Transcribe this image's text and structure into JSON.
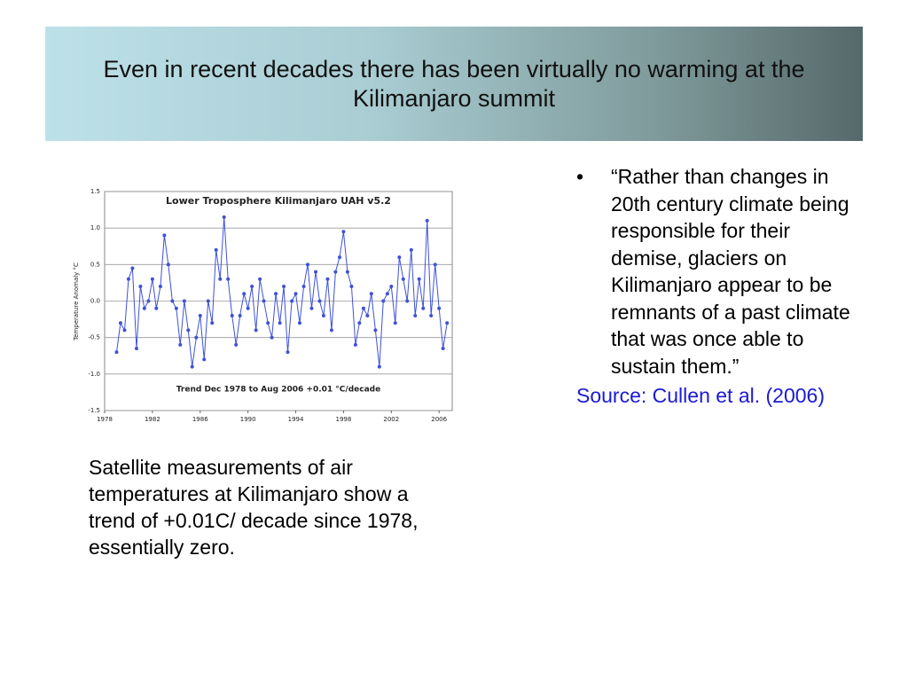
{
  "header": {
    "title": "Even in recent decades there has been virtually no warming at the Kilimanjaro summit"
  },
  "chart_data": {
    "type": "line",
    "title": "Lower Troposphere Kilimanjaro UAH v5.2",
    "y_label": "Temperature Anomaly °C",
    "annotation": "Trend Dec 1978 to Aug 2006  +0.01 °C/decade",
    "x": [
      1979.0,
      1979.33,
      1979.67,
      1980.0,
      1980.33,
      1980.67,
      1981.0,
      1981.33,
      1981.67,
      1982.0,
      1982.33,
      1982.67,
      1983.0,
      1983.33,
      1983.67,
      1984.0,
      1984.33,
      1984.67,
      1985.0,
      1985.33,
      1985.67,
      1986.0,
      1986.33,
      1986.67,
      1987.0,
      1987.33,
      1987.67,
      1988.0,
      1988.33,
      1988.67,
      1989.0,
      1989.33,
      1989.67,
      1990.0,
      1990.33,
      1990.67,
      1991.0,
      1991.33,
      1991.67,
      1992.0,
      1992.33,
      1992.67,
      1993.0,
      1993.33,
      1993.67,
      1994.0,
      1994.33,
      1994.67,
      1995.0,
      1995.33,
      1995.67,
      1996.0,
      1996.33,
      1996.67,
      1997.0,
      1997.33,
      1997.67,
      1998.0,
      1998.33,
      1998.67,
      1999.0,
      1999.33,
      1999.67,
      2000.0,
      2000.33,
      2000.67,
      2001.0,
      2001.33,
      2001.67,
      2002.0,
      2002.33,
      2002.67,
      2003.0,
      2003.33,
      2003.67,
      2004.0,
      2004.33,
      2004.67,
      2005.0,
      2005.33,
      2005.67,
      2006.0,
      2006.33,
      2006.67
    ],
    "series": [
      {
        "name": "Temperature Anomaly",
        "color": "#3f51d8",
        "values": [
          -0.7,
          -0.3,
          -0.4,
          0.3,
          0.45,
          -0.65,
          0.2,
          -0.1,
          0.0,
          0.3,
          -0.1,
          0.2,
          0.9,
          0.5,
          0.0,
          -0.1,
          -0.6,
          0.0,
          -0.4,
          -0.9,
          -0.5,
          -0.2,
          -0.8,
          0.0,
          -0.3,
          0.7,
          0.3,
          1.15,
          0.3,
          -0.2,
          -0.6,
          -0.2,
          0.1,
          -0.1,
          0.2,
          -0.4,
          0.3,
          0.0,
          -0.3,
          -0.5,
          0.1,
          -0.3,
          0.2,
          -0.7,
          0.0,
          0.1,
          -0.3,
          0.2,
          0.5,
          -0.1,
          0.4,
          0.0,
          -0.2,
          0.3,
          -0.4,
          0.4,
          0.6,
          0.95,
          0.4,
          0.2,
          -0.6,
          -0.3,
          -0.1,
          -0.2,
          0.1,
          -0.4,
          -0.9,
          0.0,
          0.1,
          0.2,
          -0.3,
          0.6,
          0.3,
          0.0,
          0.7,
          -0.2,
          0.3,
          -0.1,
          1.1,
          -0.2,
          0.5,
          -0.1,
          -0.65,
          -0.3
        ]
      }
    ],
    "xlim": [
      1978,
      2007.1
    ],
    "xticks": [
      1978,
      1982,
      1986,
      1990,
      1994,
      1998,
      2002,
      2006
    ],
    "ylim": [
      -1.5,
      1.5
    ],
    "yticks": [
      {
        "value": -1.5,
        "label": "-1.5"
      },
      {
        "value": -1,
        "label": "-1.0"
      },
      {
        "value": -0.5,
        "label": "-0.5"
      },
      {
        "value": 0,
        "label": "0.0"
      },
      {
        "value": 0.5,
        "label": "0.5"
      },
      {
        "value": 1,
        "label": "1.0"
      },
      {
        "value": 1.5,
        "label": "1.5"
      }
    ],
    "grid": true
  },
  "caption": "Satellite measurements of air temperatures at Kilimanjaro show a trend of +0.01C/ decade since 1978, essentially zero.",
  "bullets": [
    "“Rather than changes in 20th century climate being responsible for their demise, glaciers on Kilimanjaro appear to be remnants of a past climate that was once able to sustain them.”"
  ],
  "source": "Source: Cullen et al. (2006)"
}
